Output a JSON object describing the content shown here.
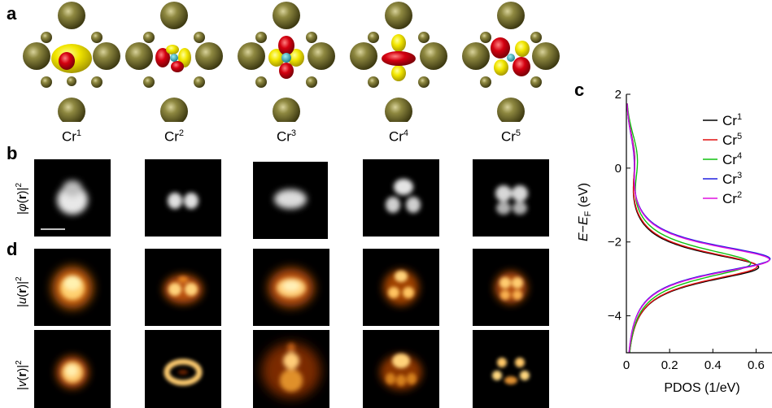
{
  "figure": {
    "panel_labels": {
      "a": "a",
      "b": "b",
      "c": "c",
      "d": "d"
    },
    "orbitals": [
      {
        "base": "Cr",
        "sup": "1"
      },
      {
        "base": "Cr",
        "sup": "2"
      },
      {
        "base": "Cr",
        "sup": "3"
      },
      {
        "base": "Cr",
        "sup": "4"
      },
      {
        "base": "Cr",
        "sup": "5"
      }
    ],
    "row_labels": {
      "phi": {
        "pre": "|",
        "sym": "φ",
        "open": "(",
        "bold": "r",
        "close": ")|",
        "sup": "2"
      },
      "u": {
        "pre": "|",
        "sym": "u",
        "open": "(",
        "bold": "r",
        "close": ")|",
        "sup": "2"
      },
      "v": {
        "pre": "|",
        "sym": "v",
        "open": "(",
        "bold": "r",
        "close": ")|",
        "sup": "2"
      }
    },
    "colors": {
      "atom": "#7a7430",
      "lobe_yellow": "#f2e600",
      "lobe_red": "#d40010",
      "center": "#2fa7b5",
      "glow": "#f08a20"
    }
  },
  "chart_data": {
    "type": "line",
    "panel": "c",
    "xlabel": "PDOS (1/eV)",
    "ylabel_parts": {
      "e": "E",
      "minus": "−",
      "f": "E",
      "sub": "F",
      "unit": " (eV)"
    },
    "xlim": [
      0,
      0.7
    ],
    "ylim": [
      -5,
      2
    ],
    "xticks": [
      0,
      0.2,
      0.4,
      0.6
    ],
    "xtick_labels": [
      "0",
      "0.2",
      "0.4",
      "0.6"
    ],
    "yticks": [
      -4,
      -2,
      0,
      2
    ],
    "ytick_labels": [
      "−4",
      "−2",
      "0",
      "2"
    ],
    "legend_position": "upper-right",
    "series": [
      {
        "name": "Cr",
        "sup": "1",
        "color": "#000000",
        "center": -2.68,
        "peak": 0.612,
        "width": 0.62,
        "tail": 0.032
      },
      {
        "name": "Cr",
        "sup": "5",
        "color": "#e01010",
        "center": -2.66,
        "peak": 0.605,
        "width": 0.63,
        "tail": 0.03
      },
      {
        "name": "Cr",
        "sup": "4",
        "color": "#10c010",
        "center": -2.58,
        "peak": 0.575,
        "width": 0.66,
        "tail": 0.042
      },
      {
        "name": "Cr",
        "sup": "3",
        "color": "#2020e0",
        "center": -2.46,
        "peak": 0.665,
        "width": 0.62,
        "tail": 0.026
      },
      {
        "name": "Cr",
        "sup": "2",
        "color": "#e010e0",
        "center": -2.48,
        "peak": 0.662,
        "width": 0.62,
        "tail": 0.028
      }
    ]
  }
}
